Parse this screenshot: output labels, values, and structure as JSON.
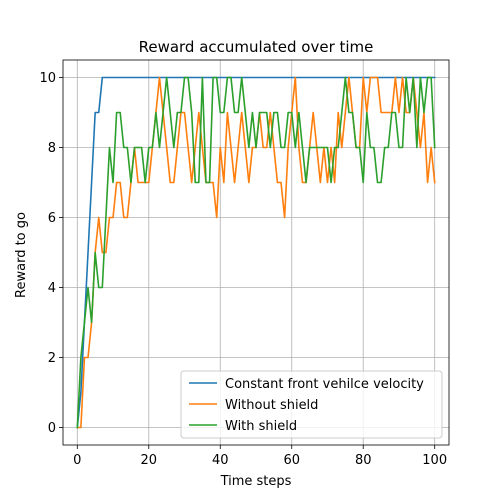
{
  "chart_data": {
    "type": "line",
    "title": "Reward accumulated over time",
    "xlabel": "Time steps",
    "ylabel": "Reward to go",
    "xlim": [
      -4,
      104
    ],
    "ylim": [
      -0.5,
      10.5
    ],
    "xticks": [
      0,
      20,
      40,
      60,
      80,
      100
    ],
    "yticks": [
      0,
      2,
      4,
      6,
      8,
      10
    ],
    "grid": true,
    "legend_position": "lower-right",
    "x": [
      0,
      1,
      2,
      3,
      4,
      5,
      6,
      7,
      8,
      9,
      10,
      11,
      12,
      13,
      14,
      15,
      16,
      17,
      18,
      19,
      20,
      21,
      22,
      23,
      24,
      25,
      26,
      27,
      28,
      29,
      30,
      31,
      32,
      33,
      34,
      35,
      36,
      37,
      38,
      39,
      40,
      41,
      42,
      43,
      44,
      45,
      46,
      47,
      48,
      49,
      50,
      51,
      52,
      53,
      54,
      55,
      56,
      57,
      58,
      59,
      60,
      61,
      62,
      63,
      64,
      65,
      66,
      67,
      68,
      69,
      70,
      71,
      72,
      73,
      74,
      75,
      76,
      77,
      78,
      79,
      80,
      81,
      82,
      83,
      84,
      85,
      86,
      87,
      88,
      89,
      90,
      91,
      92,
      93,
      94,
      95,
      96,
      97,
      98,
      99,
      100
    ],
    "series": [
      {
        "name": "Constant front vehilce velocity",
        "color": "#1f77b4",
        "values": [
          0,
          1,
          3,
          5,
          7,
          9,
          9,
          10,
          10,
          10,
          10,
          10,
          10,
          10,
          10,
          10,
          10,
          10,
          10,
          10,
          10,
          10,
          10,
          10,
          10,
          10,
          10,
          10,
          10,
          10,
          10,
          10,
          10,
          10,
          10,
          10,
          10,
          10,
          10,
          10,
          10,
          10,
          10,
          10,
          10,
          10,
          10,
          10,
          10,
          10,
          10,
          10,
          10,
          10,
          10,
          10,
          10,
          10,
          10,
          10,
          10,
          10,
          10,
          10,
          10,
          10,
          10,
          10,
          10,
          10,
          10,
          10,
          10,
          10,
          10,
          10,
          10,
          10,
          10,
          10,
          10,
          10,
          10,
          10,
          10,
          10,
          10,
          10,
          10,
          10,
          10,
          10,
          10,
          10,
          10,
          10,
          10,
          10,
          10,
          10,
          10
        ]
      },
      {
        "name": "Without shield",
        "color": "#ff7f0e",
        "values": [
          0,
          0,
          2,
          2,
          3,
          5,
          6,
          5,
          5,
          6,
          6,
          7,
          7,
          6,
          6,
          7,
          8,
          7,
          7,
          7,
          7,
          8,
          9,
          10,
          9,
          8,
          7,
          7,
          8,
          9,
          9,
          8,
          7,
          8,
          9,
          8,
          7,
          7,
          7,
          6,
          8,
          7,
          9,
          8,
          7,
          8,
          9,
          8,
          7,
          8,
          8,
          9,
          8,
          8,
          9,
          8,
          7,
          7,
          6,
          8,
          9,
          10,
          8,
          7,
          7,
          8,
          9,
          8,
          7,
          8,
          7,
          8,
          7,
          9,
          8,
          9,
          10,
          9,
          8,
          8,
          10,
          9,
          10,
          10,
          10,
          9,
          9,
          9,
          9,
          10,
          9,
          10,
          9,
          9,
          10,
          9,
          8,
          9,
          7,
          8,
          7
        ]
      },
      {
        "name": "With shield",
        "color": "#2ca02c",
        "values": [
          0,
          2,
          3,
          4,
          3,
          5,
          4,
          4,
          6,
          8,
          7,
          9,
          9,
          8,
          8,
          7,
          8,
          8,
          8,
          7,
          8,
          8,
          9,
          8,
          9,
          10,
          9,
          8,
          9,
          9,
          10,
          10,
          9,
          7,
          7,
          10,
          7,
          7,
          10,
          10,
          9,
          9,
          10,
          10,
          9,
          9,
          10,
          9,
          8,
          9,
          8,
          9,
          9,
          9,
          8,
          9,
          9,
          8,
          8,
          9,
          9,
          8,
          9,
          8,
          7,
          8,
          8,
          8,
          8,
          8,
          8,
          7,
          8,
          8,
          9,
          10,
          9,
          9,
          8,
          8,
          7,
          9,
          8,
          8,
          7,
          7,
          8,
          8,
          9,
          9,
          8,
          8,
          10,
          9,
          10,
          8,
          10,
          9,
          10,
          10,
          8
        ]
      }
    ]
  }
}
